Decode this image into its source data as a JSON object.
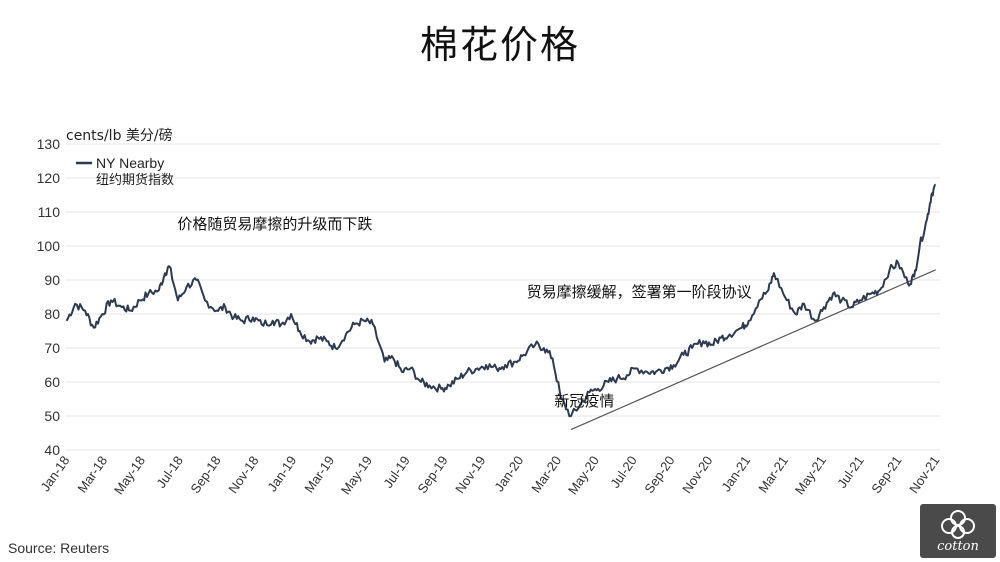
{
  "chart_data": {
    "type": "line",
    "title": "棉花价格",
    "ylabel": "cents/lb 美分/磅",
    "ylim": [
      40,
      130
    ],
    "yticks": [
      40,
      50,
      60,
      70,
      80,
      90,
      100,
      110,
      120,
      130
    ],
    "x_tick_labels": [
      "Jan-18",
      "Mar-18",
      "May-18",
      "Jul-18",
      "Sep-18",
      "Nov-18",
      "Jan-19",
      "Mar-19",
      "May-19",
      "Jul-19",
      "Sep-19",
      "Nov-19",
      "Jan-20",
      "Mar-20",
      "May-20",
      "Jul-20",
      "Sep-20",
      "Nov-20",
      "Jan-21",
      "Mar-21",
      "May-21",
      "Jul-21",
      "Sep-21",
      "Nov-21"
    ],
    "grid": "horizontal",
    "legend": {
      "position": "top-left",
      "entry_name": "NY Nearby",
      "entry_name_cn": "纽约期货指数"
    },
    "series": [
      {
        "name": "NY Nearby",
        "color": "#2e3a4f",
        "x": [
          "2018-01-02",
          "2018-01-16",
          "2018-02-01",
          "2018-02-15",
          "2018-03-01",
          "2018-03-15",
          "2018-04-02",
          "2018-04-16",
          "2018-05-01",
          "2018-05-15",
          "2018-06-01",
          "2018-06-11",
          "2018-06-18",
          "2018-07-02",
          "2018-07-16",
          "2018-08-01",
          "2018-08-15",
          "2018-09-03",
          "2018-09-17",
          "2018-10-01",
          "2018-10-15",
          "2018-11-01",
          "2018-11-15",
          "2018-12-03",
          "2018-12-17",
          "2019-01-02",
          "2019-01-16",
          "2019-02-01",
          "2019-02-15",
          "2019-03-01",
          "2019-03-15",
          "2019-04-01",
          "2019-04-15",
          "2019-05-01",
          "2019-05-15",
          "2019-06-03",
          "2019-06-17",
          "2019-07-01",
          "2019-07-15",
          "2019-08-01",
          "2019-08-15",
          "2019-09-03",
          "2019-09-16",
          "2019-10-01",
          "2019-10-15",
          "2019-11-01",
          "2019-11-15",
          "2019-12-02",
          "2019-12-16",
          "2020-01-02",
          "2020-01-15",
          "2020-02-03",
          "2020-02-17",
          "2020-03-02",
          "2020-03-16",
          "2020-04-01",
          "2020-04-15",
          "2020-05-01",
          "2020-05-15",
          "2020-06-01",
          "2020-06-15",
          "2020-07-01",
          "2020-07-15",
          "2020-08-03",
          "2020-08-17",
          "2020-09-01",
          "2020-09-15",
          "2020-10-01",
          "2020-10-15",
          "2020-11-02",
          "2020-11-16",
          "2020-12-01",
          "2020-12-15",
          "2021-01-04",
          "2021-01-15",
          "2021-02-01",
          "2021-02-16",
          "2021-02-25",
          "2021-03-15",
          "2021-04-01",
          "2021-04-15",
          "2021-05-03",
          "2021-05-17",
          "2021-06-01",
          "2021-06-15",
          "2021-07-01",
          "2021-07-15",
          "2021-08-02",
          "2021-08-16",
          "2021-09-01",
          "2021-09-15",
          "2021-10-01",
          "2021-10-11",
          "2021-10-20",
          "2021-11-01",
          "2021-11-08",
          "2021-11-15"
        ],
        "y": [
          78,
          83,
          81,
          76,
          80,
          84,
          82,
          81,
          84,
          86,
          87,
          92,
          94,
          84,
          88,
          90,
          84,
          81,
          82,
          79,
          78,
          79,
          77,
          78,
          77,
          80,
          75,
          72,
          73,
          72,
          70,
          74,
          77,
          78,
          77,
          66,
          67,
          63,
          64,
          60,
          59,
          58,
          59,
          61,
          63,
          64,
          65,
          64,
          65,
          66,
          68,
          71,
          70,
          67,
          55,
          50,
          53,
          57,
          58,
          60,
          61,
          62,
          64,
          63,
          63,
          64,
          65,
          68,
          70,
          72,
          71,
          73,
          74,
          76,
          78,
          84,
          87,
          92,
          85,
          80,
          83,
          78,
          82,
          86,
          84,
          82,
          84,
          86,
          87,
          93,
          95,
          89,
          91,
          100,
          108,
          115,
          118
        ]
      }
    ],
    "trendline": {
      "x": [
        "2020-04-01",
        "2021-11-15"
      ],
      "y": [
        46,
        93
      ]
    },
    "annotations": [
      {
        "text": "价格随贸易摩擦的升级而下跌",
        "x": "2018-07-01",
        "y": 105
      },
      {
        "text": "贸易摩擦缓解，签署第一阶段协议",
        "x": "2020-01-20",
        "y": 85
      },
      {
        "text": "新冠疫情",
        "x": "2020-03-05",
        "y": 53
      }
    ],
    "source": "Source: Reuters"
  },
  "logo": {
    "text": "cotton",
    "color": "#4a4a4a"
  }
}
